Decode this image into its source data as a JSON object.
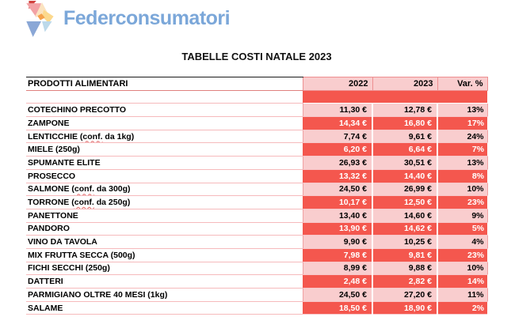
{
  "logo": {
    "brand": "Federconsumatori",
    "brand_color": "#7ba7d9",
    "icon": "pinwheel-triangles-logo"
  },
  "title": "TABELLE COSTI NATALE 2023",
  "colors": {
    "solid_red": "#f4574e",
    "light_pink": "#f9cdce",
    "border_pink": "#ee8f91",
    "logo_blue_text": "#7ba7d9"
  },
  "table": {
    "columns": [
      "PRODOTTI ALIMENTARI",
      "2022",
      "2023",
      "Var. %"
    ],
    "rows": [
      {
        "product": "COTECHINO PRECOTTO",
        "y2022": "11,30 €",
        "y2023": "12,78 €",
        "var": "13%"
      },
      {
        "product": "ZAMPONE",
        "y2022": "14,34 €",
        "y2023": "16,80 €",
        "var": "17%"
      },
      {
        "product": "LENTICCHIE (conf. da 1kg)",
        "y2022": "7,74 €",
        "y2023": "9,61 €",
        "var": "24%"
      },
      {
        "product": "MIELE (250g)",
        "y2022": "6,20 €",
        "y2023": "6,64 €",
        "var": "7%"
      },
      {
        "product": "SPUMANTE ELITE",
        "y2022": "26,93 €",
        "y2023": "30,51 €",
        "var": "13%"
      },
      {
        "product": "PROSECCO",
        "y2022": "13,32 €",
        "y2023": "14,40 €",
        "var": "8%"
      },
      {
        "product": "SALMONE (conf. da 300g)",
        "y2022": "24,50 €",
        "y2023": "26,99 €",
        "var": "10%"
      },
      {
        "product": "TORRONE (conf. da 250g)",
        "y2022": "10,17 €",
        "y2023": "12,50 €",
        "var": "23%"
      },
      {
        "product": "PANETTONE",
        "y2022": "13,40 €",
        "y2023": "14,60 €",
        "var": "9%"
      },
      {
        "product": "PANDORO",
        "y2022": "13,90 €",
        "y2023": "14,62 €",
        "var": "5%"
      },
      {
        "product": "VINO DA TAVOLA",
        "y2022": "9,90 €",
        "y2023": "10,25 €",
        "var": "4%"
      },
      {
        "product": "MIX FRUTTA SECCA (500g)",
        "y2022": "7,98 €",
        "y2023": "9,81 €",
        "var": "23%"
      },
      {
        "product": "FICHI SECCHI (250g)",
        "y2022": "8,99 €",
        "y2023": "9,88 €",
        "var": "10%"
      },
      {
        "product": "DATTERI",
        "y2022": "2,48 €",
        "y2023": "2,82 €",
        "var": "14%"
      },
      {
        "product": "PARMIGIANO OLTRE 40 MESI (1kg)",
        "y2022": "24,50 €",
        "y2023": "27,20 €",
        "var": "11%"
      },
      {
        "product": "SALAME",
        "y2022": "18,50 €",
        "y2023": "18,90 €",
        "var": "2%"
      }
    ]
  }
}
